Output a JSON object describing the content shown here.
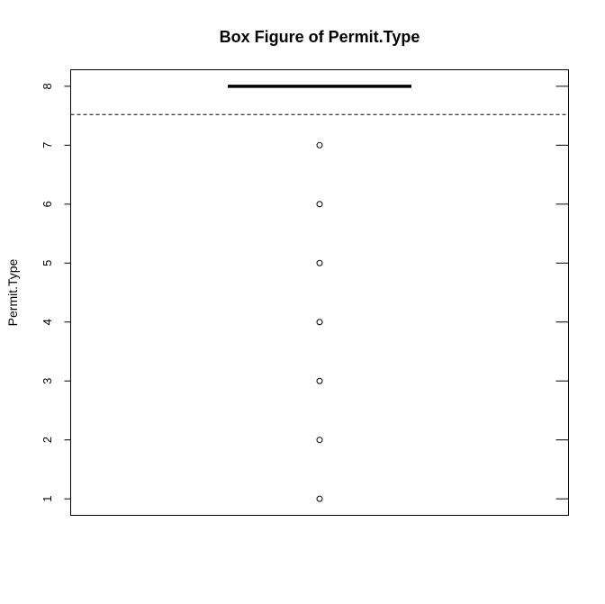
{
  "chart_data": {
    "type": "box",
    "title": "Box Figure of Permit.Type",
    "xlabel": "",
    "ylabel": "Permit.Type",
    "ylim": [
      0.72,
      8.28
    ],
    "y_ticks": [
      1,
      2,
      3,
      4,
      5,
      6,
      7,
      8
    ],
    "y_tick_labels": [
      "1",
      "2",
      "3",
      "4",
      "5",
      "6",
      "7",
      "8"
    ],
    "box": {
      "median": 8,
      "q1": 8,
      "q3": 8,
      "whisker_low": 8,
      "whisker_high": 8
    },
    "reference_line": {
      "value": 7.52,
      "style": "dashed"
    },
    "outliers": [
      7,
      6,
      5,
      4,
      3,
      2,
      1
    ],
    "grid": false,
    "legend": "none",
    "colors": {
      "line": "#000000",
      "background": "#ffffff"
    }
  }
}
